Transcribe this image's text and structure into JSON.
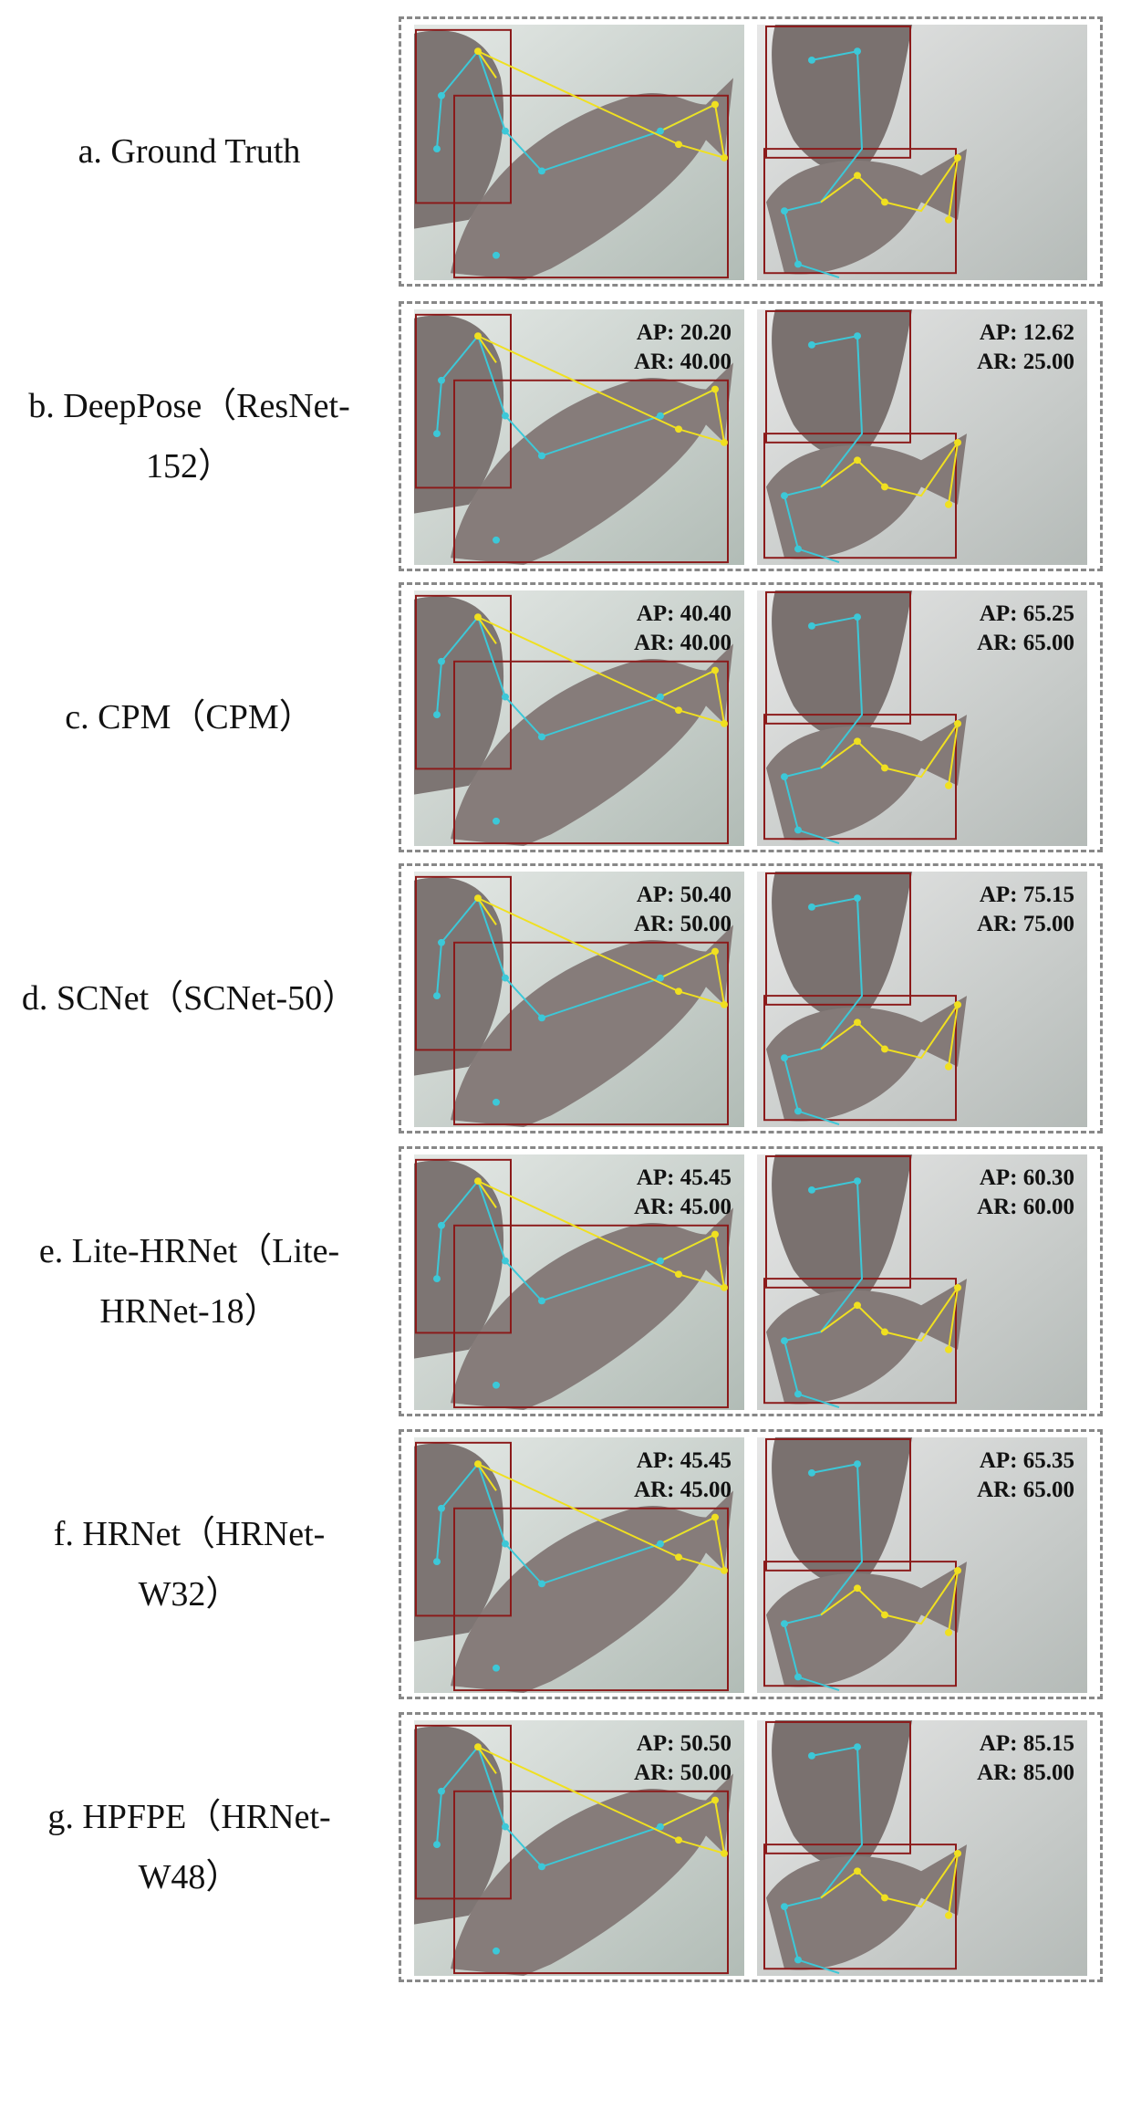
{
  "rows": [
    {
      "label": "a. Ground Truth",
      "left": {
        "ap": "",
        "ar": ""
      },
      "right": {
        "ap": "",
        "ar": ""
      }
    },
    {
      "label": "b. DeepPose（ResNet-152）",
      "left": {
        "ap": "AP:  20.20",
        "ar": "AR:  40.00"
      },
      "right": {
        "ap": "AP:  12.62",
        "ar": "AR:  25.00"
      }
    },
    {
      "label": "c. CPM（CPM）",
      "left": {
        "ap": "AP:  40.40",
        "ar": "AR:  40.00"
      },
      "right": {
        "ap": "AP:  65.25",
        "ar": "AR:  65.00"
      }
    },
    {
      "label": "d. SCNet（SCNet-50）",
      "left": {
        "ap": "AP:  50.40",
        "ar": "AR:  50.00"
      },
      "right": {
        "ap": "AP:  75.15",
        "ar": "AR:  75.00"
      }
    },
    {
      "label": "e. Lite-HRNet（Lite-HRNet-18）",
      "left": {
        "ap": "AP:  45.45",
        "ar": "AR:  45.00"
      },
      "right": {
        "ap": "AP:  60.30",
        "ar": "AR:  60.00"
      }
    },
    {
      "label": "f. HRNet（HRNet-W32）",
      "left": {
        "ap": "AP:  45.45",
        "ar": "AR:  45.00"
      },
      "right": {
        "ap": "AP:  65.35",
        "ar": "AR:  65.00"
      }
    },
    {
      "label": "g. HPFPE（HRNet-W48）",
      "left": {
        "ap": "AP:  50.50",
        "ar": "AR:  50.00"
      },
      "right": {
        "ap": "AP:  85.15",
        "ar": "AR:  85.00"
      }
    }
  ],
  "colors": {
    "bbox": "#8b1a1a",
    "skeleton_cyan": "#3cc8d8",
    "skeleton_yellow": "#f0e020",
    "keypoint_label": "#3adf3a",
    "dash_border": "#888888"
  }
}
